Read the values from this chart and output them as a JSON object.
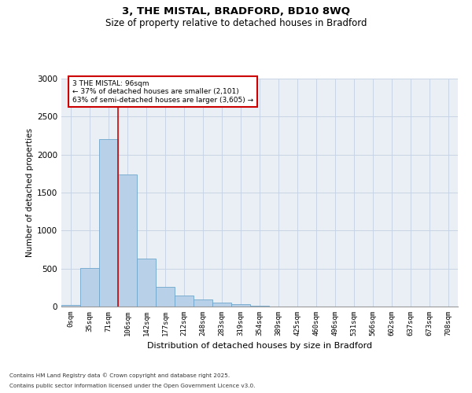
{
  "title_line1": "3, THE MISTAL, BRADFORD, BD10 8WQ",
  "title_line2": "Size of property relative to detached houses in Bradford",
  "xlabel": "Distribution of detached houses by size in Bradford",
  "ylabel": "Number of detached properties",
  "bar_color": "#b8d0e8",
  "bar_edge_color": "#6ea6cc",
  "categories": [
    "0sqm",
    "35sqm",
    "71sqm",
    "106sqm",
    "142sqm",
    "177sqm",
    "212sqm",
    "248sqm",
    "283sqm",
    "319sqm",
    "354sqm",
    "389sqm",
    "425sqm",
    "460sqm",
    "496sqm",
    "531sqm",
    "566sqm",
    "602sqm",
    "637sqm",
    "673sqm",
    "708sqm"
  ],
  "values": [
    20,
    510,
    2200,
    1740,
    630,
    260,
    140,
    90,
    55,
    30,
    10,
    5,
    5,
    2,
    0,
    0,
    0,
    0,
    0,
    0,
    0
  ],
  "ylim": [
    0,
    3000
  ],
  "yticks": [
    0,
    500,
    1000,
    1500,
    2000,
    2500,
    3000
  ],
  "annotation_line1": "3 THE MISTAL: 96sqm",
  "annotation_line2": "← 37% of detached houses are smaller (2,101)",
  "annotation_line3": "63% of semi-detached houses are larger (3,605) →",
  "vline_color": "#cc0000",
  "grid_color": "#c8d4e4",
  "bg_color": "#eaeff6",
  "footnote_line1": "Contains HM Land Registry data © Crown copyright and database right 2025.",
  "footnote_line2": "Contains public sector information licensed under the Open Government Licence v3.0."
}
